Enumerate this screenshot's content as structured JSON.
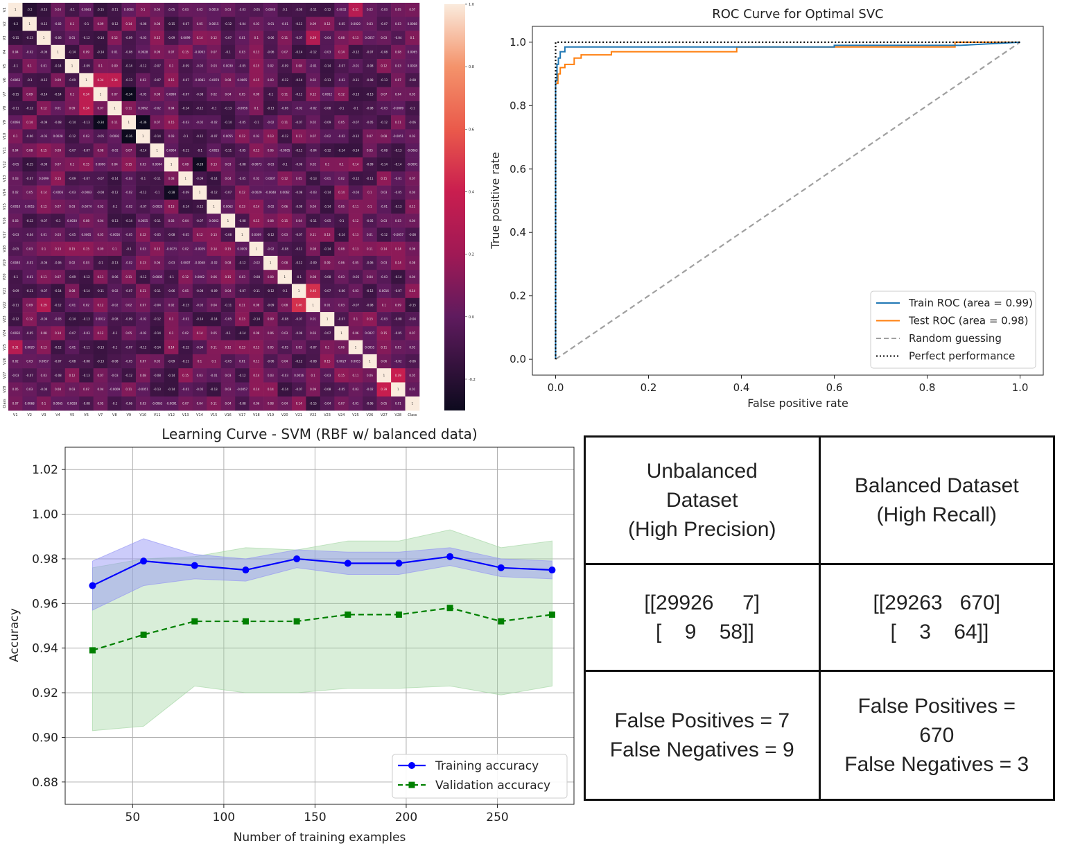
{
  "heatmap": {
    "variables": [
      "V1",
      "V2",
      "V3",
      "V4",
      "V5",
      "V6",
      "V7",
      "V8",
      "V9",
      "V10",
      "V11",
      "V12",
      "V13",
      "V14",
      "V15",
      "V16",
      "V17",
      "V18",
      "V19",
      "V20",
      "V21",
      "V22",
      "V23",
      "V24",
      "V25",
      "V26",
      "V27",
      "V28",
      "Class"
    ],
    "colorbar_ticks": [
      "1.0",
      "0.8",
      "0.6",
      "0.4",
      "0.2",
      "0.0",
      "-0.2"
    ],
    "colorbar_values": [
      1.0,
      0.8,
      0.6,
      0.4,
      0.2,
      0.0,
      -0.2
    ],
    "vmin": -0.3,
    "vmax": 1.0,
    "corr_V1": [
      1,
      -0.2,
      -0.15,
      0.039,
      -0.097,
      0.0063,
      -0.15,
      -0.11,
      0.0093,
      0.1,
      0.041,
      -0.047,
      0.026,
      0.017,
      0.001,
      0.028,
      -0.034,
      -0.052,
      0.004,
      -0.099,
      -0.091,
      -0.11,
      -0.12,
      0.0032,
      0.31,
      0.023,
      -0.027,
      0.053,
      0.075
    ],
    "colors": {
      "high": "#faebdd",
      "upper": "#f4936b",
      "mid": "#c91e4f",
      "low": "#5f1b5e",
      "bottom": "#0d0a1e"
    }
  },
  "roc": {
    "chart_data": {
      "type": "line",
      "title": "ROC Curve for Optimal SVC",
      "xlabel": "False positive rate",
      "ylabel": "True positive rate",
      "xlim": [
        -0.05,
        1.05
      ],
      "ylim": [
        -0.05,
        1.05
      ],
      "x_ticks": [
        "0.0",
        "0.2",
        "0.4",
        "0.6",
        "0.8",
        "1.0"
      ],
      "y_ticks": [
        "0.0",
        "0.2",
        "0.4",
        "0.6",
        "0.8",
        "1.0"
      ],
      "legend_position": "lower-right",
      "series": [
        {
          "name": "Train ROC (area = 0.99)",
          "color": "#1f77b4",
          "style": "solid",
          "x": [
            0,
            0,
            0.003,
            0.003,
            0.006,
            0.006,
            0.01,
            0.01,
            0.02,
            0.02,
            0.6,
            0.6,
            0.87,
            1.0
          ],
          "y": [
            0,
            0.88,
            0.88,
            0.93,
            0.93,
            0.95,
            0.95,
            0.97,
            0.97,
            0.985,
            0.985,
            0.99,
            0.99,
            1.0
          ]
        },
        {
          "name": "Test ROC (area = 0.98)",
          "color": "#ff7f0e",
          "style": "solid",
          "x": [
            0,
            0,
            0.005,
            0.005,
            0.01,
            0.01,
            0.02,
            0.02,
            0.04,
            0.04,
            0.055,
            0.055,
            0.12,
            0.12,
            0.39,
            0.39,
            0.86,
            0.86,
            1.0
          ],
          "y": [
            0,
            0.87,
            0.87,
            0.9,
            0.9,
            0.92,
            0.92,
            0.93,
            0.93,
            0.95,
            0.95,
            0.96,
            0.96,
            0.97,
            0.97,
            0.985,
            0.985,
            1.0,
            1.0
          ]
        },
        {
          "name": "Random guessing",
          "color": "#a0a0a0",
          "style": "dashed",
          "x": [
            0,
            1
          ],
          "y": [
            0,
            1
          ]
        },
        {
          "name": "Perfect performance",
          "color": "#000000",
          "style": "dotted",
          "x": [
            0,
            0,
            1
          ],
          "y": [
            0,
            1,
            1
          ]
        }
      ]
    }
  },
  "learning_curve": {
    "chart_data": {
      "type": "line",
      "title": "Learning Curve - SVM (RBF w/ balanced data)",
      "xlabel": "Number of training examples",
      "ylabel": "Accuracy",
      "xlim": [
        13,
        292
      ],
      "ylim": [
        0.87,
        1.03
      ],
      "x_ticks": [
        "50",
        "100",
        "150",
        "200",
        "250"
      ],
      "y_ticks": [
        "0.88",
        "0.90",
        "0.92",
        "0.94",
        "0.96",
        "0.98",
        "1.00",
        "1.02"
      ],
      "grid": true,
      "legend_position": "lower-right",
      "x": [
        28,
        56,
        84,
        112,
        140,
        168,
        196,
        224,
        252,
        280
      ],
      "series": [
        {
          "name": "Training accuracy",
          "color": "#0000ff",
          "marker": "circle",
          "values": [
            0.968,
            0.979,
            0.977,
            0.975,
            0.98,
            0.978,
            0.978,
            0.981,
            0.976,
            0.975
          ],
          "band_upper": [
            0.979,
            0.989,
            0.982,
            0.98,
            0.984,
            0.983,
            0.983,
            0.985,
            0.98,
            0.979
          ],
          "band_lower": [
            0.957,
            0.968,
            0.971,
            0.97,
            0.976,
            0.973,
            0.973,
            0.977,
            0.972,
            0.971
          ]
        },
        {
          "name": "Validation accuracy",
          "color": "#008000",
          "marker": "square",
          "style": "dashed",
          "values": [
            0.939,
            0.946,
            0.952,
            0.952,
            0.952,
            0.955,
            0.955,
            0.958,
            0.952,
            0.955
          ],
          "band_upper": [
            0.976,
            0.98,
            0.981,
            0.985,
            0.984,
            0.988,
            0.988,
            0.993,
            0.985,
            0.988
          ],
          "band_lower": [
            0.903,
            0.905,
            0.923,
            0.92,
            0.92,
            0.922,
            0.922,
            0.923,
            0.919,
            0.923
          ]
        }
      ]
    }
  },
  "confusion_table": {
    "chart_data": {
      "type": "table",
      "rows": [
        [
          [
            "Unbalanced",
            "Dataset",
            "(High Precision)"
          ],
          [
            "Balanced Dataset",
            "(High Recall)"
          ]
        ],
        [
          [
            "[[29926     7]",
            " [    9    58]]"
          ],
          [
            "[[29263   670]",
            " [    3    64]]"
          ]
        ],
        [
          [
            "False Positives = 7",
            "False Negatives = 9"
          ],
          [
            "False Positives =",
            "670",
            "False Negatives = 3"
          ]
        ]
      ]
    }
  }
}
